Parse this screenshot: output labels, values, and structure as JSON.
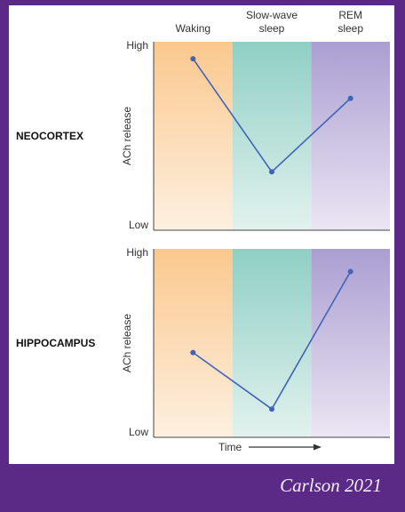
{
  "citation": "Carlson 2021",
  "colors": {
    "background": "#5b2a86",
    "waking_top": "#fbc88e",
    "waking_bottom": "#fdf0e0",
    "sws_top": "#8fcfc4",
    "sws_bottom": "#e2f2ee",
    "rem_top": "#ab9ed2",
    "rem_bottom": "#ebe6f3",
    "line": "#3f63b8"
  },
  "chart_data": {
    "type": "line",
    "phases": [
      {
        "line1": "Waking",
        "line2": ""
      },
      {
        "line1": "Slow-wave",
        "line2": "sleep"
      },
      {
        "line1": "REM",
        "line2": "sleep"
      }
    ],
    "x_categories": [
      "Waking",
      "Slow-wave sleep",
      "REM sleep"
    ],
    "xlabel": "Time",
    "ylim": [
      0,
      1
    ],
    "panels": [
      {
        "name": "NEOCORTEX",
        "ylabel": "ACh release",
        "y_ticks": [
          {
            "label": "High",
            "value": 1
          },
          {
            "label": "Low",
            "value": 0
          }
        ],
        "values": [
          0.91,
          0.31,
          0.7
        ]
      },
      {
        "name": "HIPPOCAMPUS",
        "ylabel": "ACh release",
        "y_ticks": [
          {
            "label": "High",
            "value": 1
          },
          {
            "label": "Low",
            "value": 0
          }
        ],
        "values": [
          0.45,
          0.15,
          0.88
        ]
      }
    ]
  }
}
